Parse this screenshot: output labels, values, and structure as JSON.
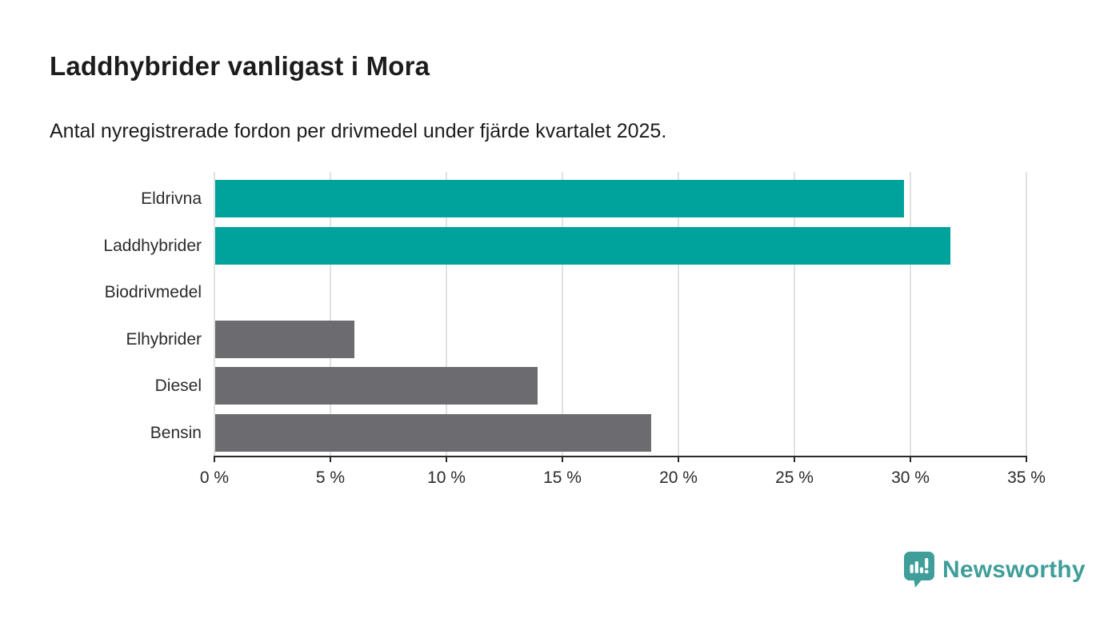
{
  "header": {
    "title": "Laddhybrider vanligast i Mora",
    "subtitle": "Antal nyregistrerade fordon per drivmedel under fjärde kvartalet 2025."
  },
  "chart_data": {
    "type": "bar",
    "orientation": "horizontal",
    "title": "Laddhybrider vanligast i Mora",
    "subtitle": "Antal nyregistrerade fordon per drivmedel under fjärde kvartalet 2025.",
    "categories": [
      "Eldrivna",
      "Laddhybrider",
      "Biodrivmedel",
      "Elhybrider",
      "Diesel",
      "Bensin"
    ],
    "values": [
      29.7,
      31.7,
      0,
      6.0,
      13.9,
      18.8
    ],
    "unit": "%",
    "colors": [
      "#00a39b",
      "#00a39b",
      "#6c6c70",
      "#6c6c70",
      "#6c6c70",
      "#6c6c70"
    ],
    "highlight_color": "#00a39b",
    "default_color": "#6c6c70",
    "xlim": [
      0,
      35
    ],
    "x_ticks": [
      0,
      5,
      10,
      15,
      20,
      25,
      30,
      35
    ],
    "x_tick_suffix": " %",
    "grid": "vertical",
    "legend": "none"
  },
  "branding": {
    "logo_text": "Newsworthy",
    "logo_color": "#3f9e99"
  }
}
